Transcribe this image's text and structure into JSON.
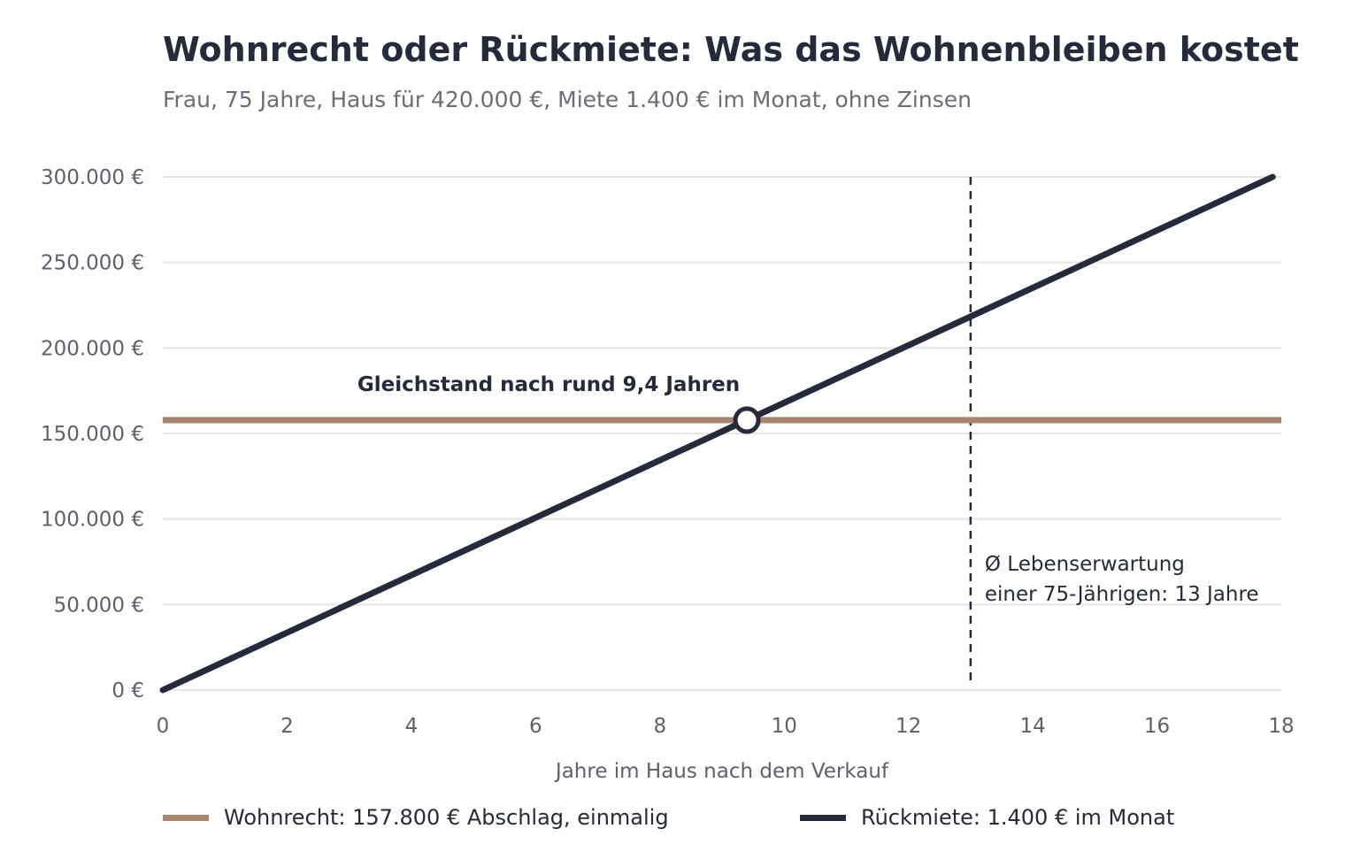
{
  "title": "Wohnrecht oder Rückmiete: Was das Wohnenbleiben kostet",
  "subtitle": "Frau, 75 Jahre, Haus für 420.000 €, Miete 1.400 € im Monat, ohne Zinsen",
  "colors": {
    "wohnrecht": "#a8856c",
    "rueckmiete": "#262a3a",
    "grid": "#e5e5e5",
    "axis_text": "#5e606b"
  },
  "chart_data": {
    "type": "line",
    "title": "Wohnrecht oder Rückmiete: Was das Wohnenbleiben kostet",
    "subtitle": "Frau, 75 Jahre, Haus für 420.000 €, Miete 1.400 € im Monat, ohne Zinsen",
    "xlabel": "Jahre im Haus nach dem Verkauf",
    "ylabel": "",
    "xlim": [
      0,
      18
    ],
    "ylim": [
      0,
      300000
    ],
    "x_ticks": [
      0,
      2,
      4,
      6,
      8,
      10,
      12,
      14,
      16,
      18
    ],
    "x_tick_labels": [
      "0",
      "2",
      "4",
      "6",
      "8",
      "10",
      "12",
      "14",
      "16",
      "18"
    ],
    "y_ticks": [
      0,
      50000,
      100000,
      150000,
      200000,
      250000,
      300000
    ],
    "y_tick_labels": [
      "0 €",
      "50.000 €",
      "100.000 €",
      "150.000 €",
      "200.000 €",
      "250.000 €",
      "300.000 €"
    ],
    "grid": true,
    "legend_position": "bottom",
    "series": [
      {
        "name": "Wohnrecht: 157.800 € Abschlag, einmalig",
        "color": "#a8856c",
        "x": [
          0,
          18
        ],
        "y": [
          157800,
          157800
        ]
      },
      {
        "name": "Rückmiete: 1.400 € im Monat",
        "color": "#262a3a",
        "x": [
          0,
          17.86
        ],
        "y": [
          0,
          300000
        ]
      }
    ],
    "intersection": {
      "x": 9.4,
      "y": 157800,
      "label": "Gleichstand nach rund 9,4 Jahren"
    },
    "reference_line": {
      "x": 13,
      "label_lines": [
        "Ø Lebenserwartung",
        "einer 75-Jährigen: 13 Jahre"
      ]
    }
  }
}
